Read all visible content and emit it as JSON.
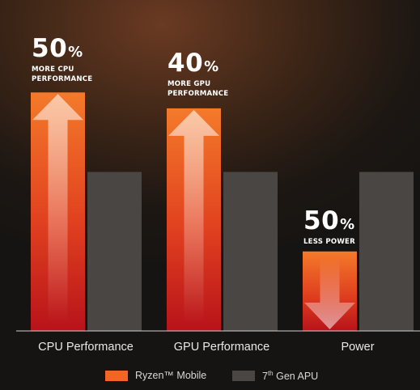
{
  "chart_data": {
    "type": "bar",
    "categories": [
      "CPU Performance",
      "GPU Performance",
      "Power"
    ],
    "series": [
      {
        "name": "Ryzen™ Mobile",
        "values": [
          150,
          140,
          50
        ],
        "color": "#f26522"
      },
      {
        "name": "7th Gen APU",
        "values": [
          100,
          100,
          100
        ],
        "color": "#4a4643"
      }
    ],
    "ylim": [
      0,
      200
    ],
    "grid": false,
    "legend_position": "bottom",
    "annotations": [
      {
        "value": "50",
        "unit": "%",
        "line1": "MORE CPU",
        "line2": "PERFORMANCE",
        "arrow": "up"
      },
      {
        "value": "40",
        "unit": "%",
        "line1": "MORE GPU",
        "line2": "PERFORMANCE",
        "arrow": "up"
      },
      {
        "value": "50",
        "unit": "%",
        "line1": "LESS POWER",
        "line2": "",
        "arrow": "down"
      }
    ]
  },
  "legend": {
    "ryzen_label": "Ryzen™ Mobile",
    "apu_prefix": "7",
    "apu_sup": "th",
    "apu_suffix": " Gen APU"
  }
}
